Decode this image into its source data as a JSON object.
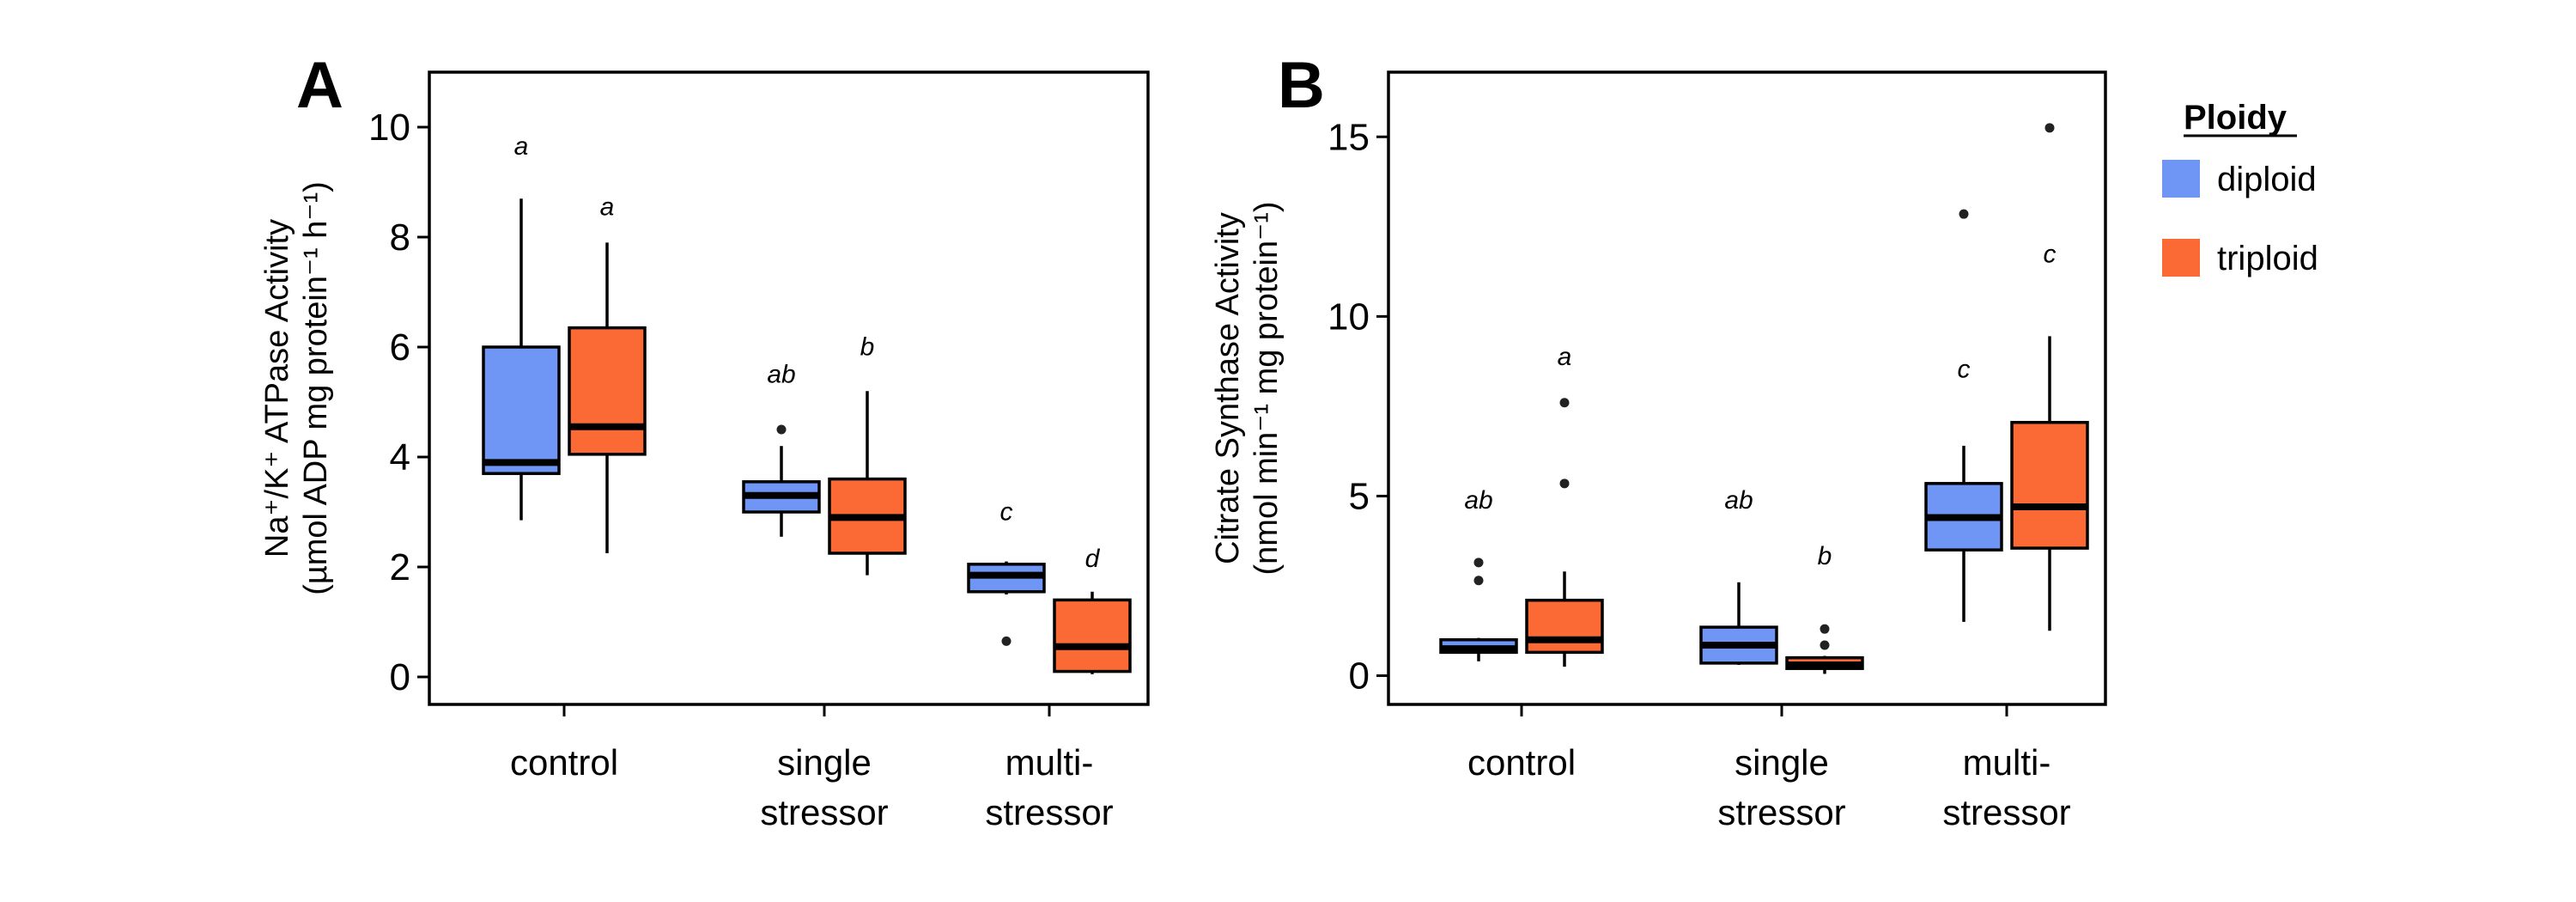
{
  "colors": {
    "diploid": "#6f96f4",
    "triploid": "#fb6a35"
  },
  "legend": {
    "title": "Ploidy",
    "items": [
      {
        "label": "diploid",
        "color": "#6f96f4"
      },
      {
        "label": "triploid",
        "color": "#fb6a35"
      }
    ]
  },
  "chart_data": [
    {
      "type": "boxplot",
      "panel": "A",
      "ylabel_line1": "Na⁺/K⁺ ATPase Activity",
      "ylabel_line2": "(µmol ADP mg protein⁻¹ h⁻¹)",
      "ylim": [
        -0.5,
        11
      ],
      "yticks": [
        0,
        2,
        4,
        6,
        8,
        10
      ],
      "categories": [
        [
          "control"
        ],
        [
          "single",
          "stressor"
        ],
        [
          "multi-",
          "stressor"
        ]
      ],
      "groups": [
        "diploid",
        "triploid"
      ],
      "boxes": [
        {
          "category": 0,
          "group": "diploid",
          "min": 2.85,
          "q1": 3.7,
          "median": 3.9,
          "q3": 6.0,
          "max": 8.7,
          "outliers": [],
          "letter": "a",
          "letter_y": 9.5
        },
        {
          "category": 0,
          "group": "triploid",
          "min": 2.25,
          "q1": 4.05,
          "median": 4.55,
          "q3": 6.35,
          "max": 7.9,
          "outliers": [],
          "letter": "a",
          "letter_y": 8.4
        },
        {
          "category": 1,
          "group": "diploid",
          "min": 2.55,
          "q1": 3.0,
          "median": 3.3,
          "q3": 3.55,
          "max": 4.2,
          "outliers": [
            4.5
          ],
          "letter": "ab",
          "letter_y": 5.35
        },
        {
          "category": 1,
          "group": "triploid",
          "min": 1.85,
          "q1": 2.25,
          "median": 2.9,
          "q3": 3.6,
          "max": 5.2,
          "outliers": [],
          "letter": "b",
          "letter_y": 5.85
        },
        {
          "category": 2,
          "group": "diploid",
          "min": 1.5,
          "q1": 1.55,
          "median": 1.85,
          "q3": 2.05,
          "max": 2.1,
          "outliers": [
            0.65
          ],
          "letter": "c",
          "letter_y": 2.85
        },
        {
          "category": 2,
          "group": "triploid",
          "min": 0.05,
          "q1": 0.1,
          "median": 0.55,
          "q3": 1.4,
          "max": 1.55,
          "outliers": [],
          "letter": "d",
          "letter_y": 2.0
        }
      ]
    },
    {
      "type": "boxplot",
      "panel": "B",
      "ylabel_line1": "Citrate Synthase Activity",
      "ylabel_line2": "(nmol min⁻¹ mg protein⁻¹)",
      "ylim": [
        -0.8,
        16.8
      ],
      "yticks": [
        0,
        5,
        10,
        15
      ],
      "categories": [
        [
          "control"
        ],
        [
          "single",
          "stressor"
        ],
        [
          "multi-",
          "stressor"
        ]
      ],
      "groups": [
        "diploid",
        "triploid"
      ],
      "boxes": [
        {
          "category": 0,
          "group": "diploid",
          "min": 0.4,
          "q1": 0.65,
          "median": 0.75,
          "q3": 1.0,
          "max": 1.05,
          "outliers": [
            3.15,
            2.65
          ],
          "letter": "ab",
          "letter_y": 4.65
        },
        {
          "category": 0,
          "group": "triploid",
          "min": 0.25,
          "q1": 0.65,
          "median": 1.0,
          "q3": 2.1,
          "max": 2.9,
          "outliers": [
            5.35,
            7.6
          ],
          "letter": "a",
          "letter_y": 8.65
        },
        {
          "category": 1,
          "group": "diploid",
          "min": 0.3,
          "q1": 0.35,
          "median": 0.85,
          "q3": 1.35,
          "max": 2.6,
          "outliers": [],
          "letter": "ab",
          "letter_y": 4.65
        },
        {
          "category": 1,
          "group": "triploid",
          "min": 0.05,
          "q1": 0.2,
          "median": 0.3,
          "q3": 0.5,
          "max": 0.55,
          "outliers": [
            0.85,
            1.3
          ],
          "letter": "b",
          "letter_y": 3.1
        },
        {
          "category": 2,
          "group": "diploid",
          "min": 1.5,
          "q1": 3.5,
          "median": 4.4,
          "q3": 5.35,
          "max": 6.4,
          "outliers": [
            12.85
          ],
          "letter": "c",
          "letter_y": 8.3
        },
        {
          "category": 2,
          "group": "triploid",
          "min": 1.25,
          "q1": 3.55,
          "median": 4.7,
          "q3": 7.05,
          "max": 9.45,
          "outliers": [
            15.25
          ],
          "letter": "c",
          "letter_y": 11.5
        }
      ]
    }
  ]
}
